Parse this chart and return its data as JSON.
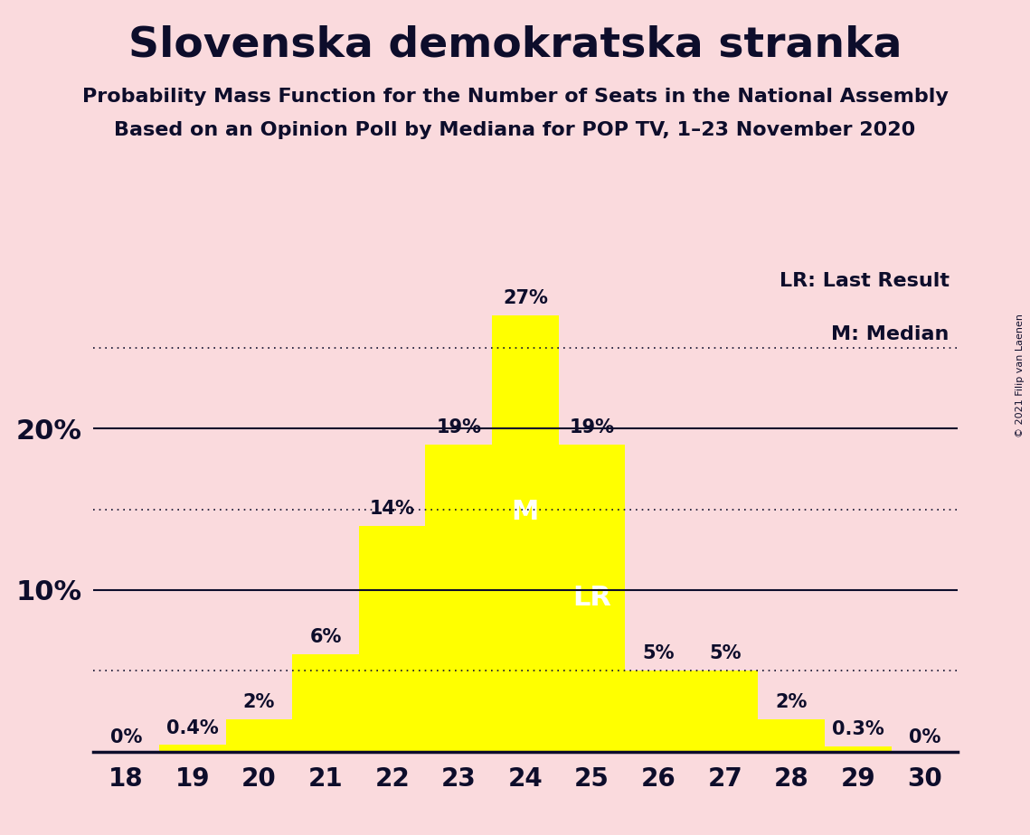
{
  "title": "Slovenska demokratska stranka",
  "subtitle1": "Probability Mass Function for the Number of Seats in the National Assembly",
  "subtitle2": "Based on an Opinion Poll by Mediana for POP TV, 1–23 November 2020",
  "copyright": "© 2021 Filip van Laenen",
  "background_color": "#fadadd",
  "bar_color": "#ffff00",
  "categories": [
    18,
    19,
    20,
    21,
    22,
    23,
    24,
    25,
    26,
    27,
    28,
    29,
    30
  ],
  "values": [
    0.0,
    0.4,
    2.0,
    6.0,
    14.0,
    19.0,
    27.0,
    19.0,
    5.0,
    5.0,
    2.0,
    0.3,
    0.0
  ],
  "label_texts": [
    "0%",
    "0.4%",
    "2%",
    "6%",
    "14%",
    "19%",
    "27%",
    "19%",
    "5%",
    "5%",
    "2%",
    "0.3%",
    "0%"
  ],
  "median_bar": 24,
  "last_result_bar": 25,
  "ylim": [
    0,
    30
  ],
  "dotted_lines": [
    5,
    15,
    25
  ],
  "solid_lines": [
    10,
    20
  ],
  "legend_lr": "LR: Last Result",
  "legend_m": "M: Median",
  "title_fontsize": 34,
  "subtitle_fontsize": 16,
  "label_fontsize": 15,
  "axis_tick_fontsize": 20,
  "ylabel_fontsize": 22,
  "m_label_fontsize": 22,
  "lr_label_fontsize": 22,
  "legend_fontsize": 16
}
